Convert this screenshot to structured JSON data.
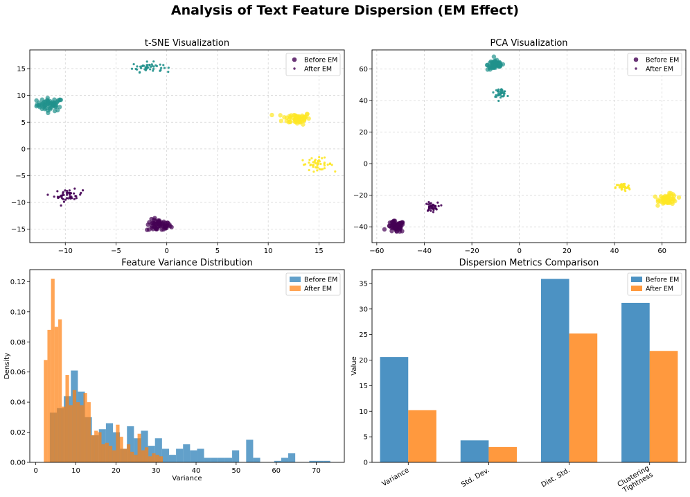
{
  "figure": {
    "title": "Analysis of Text Feature Dispersion (EM Effect)"
  },
  "chart_data": [
    {
      "id": "tsne",
      "type": "scatter",
      "title": "t-SNE Visualization",
      "xlabel": "",
      "ylabel": "",
      "xlim": [
        -13.5,
        17.5
      ],
      "ylim": [
        -17.5,
        18.5
      ],
      "xticks": [
        -10,
        -5,
        0,
        5,
        10,
        15
      ],
      "yticks": [
        -15,
        -10,
        -5,
        0,
        5,
        10,
        15
      ],
      "grid": true,
      "legend": "top-right",
      "series": [
        {
          "name": "Before EM",
          "marker": "large",
          "clusters": [
            {
              "cx": -11.5,
              "cy": 8.3,
              "sx": 0.65,
              "sy": 0.6,
              "n": 60,
              "color": "#21918c"
            },
            {
              "cx": -0.8,
              "cy": -14.3,
              "sx": 0.6,
              "sy": 0.55,
              "n": 60,
              "color": "#440154"
            },
            {
              "cx": 12.8,
              "cy": 5.7,
              "sx": 0.7,
              "sy": 0.55,
              "n": 60,
              "color": "#fde725"
            }
          ]
        },
        {
          "name": "After EM",
          "marker": "small",
          "clusters": [
            {
              "cx": -1.9,
              "cy": 15.3,
              "sx": 0.75,
              "sy": 0.45,
              "n": 45,
              "color": "#21918c"
            },
            {
              "cx": -9.7,
              "cy": -8.7,
              "sx": 0.7,
              "sy": 0.55,
              "n": 45,
              "color": "#440154"
            },
            {
              "cx": 14.8,
              "cy": -2.8,
              "sx": 0.8,
              "sy": 0.55,
              "n": 45,
              "color": "#fde725"
            }
          ]
        }
      ]
    },
    {
      "id": "pca",
      "type": "scatter",
      "title": "PCA Visualization",
      "xlabel": "",
      "ylabel": "",
      "xlim": [
        -62,
        70
      ],
      "ylim": [
        -50,
        72
      ],
      "xticks": [
        -60,
        -40,
        -20,
        0,
        20,
        40,
        60
      ],
      "yticks": [
        -40,
        -20,
        0,
        20,
        40,
        60
      ],
      "grid": true,
      "legend": "top-right",
      "series": [
        {
          "name": "Before EM",
          "marker": "large",
          "clusters": [
            {
              "cx": -10,
              "cy": 62.5,
              "sx": 1.7,
              "sy": 1.6,
              "n": 60,
              "color": "#21918c"
            },
            {
              "cx": -52,
              "cy": -40,
              "sx": 1.8,
              "sy": 1.8,
              "n": 60,
              "color": "#440154"
            },
            {
              "cx": 62.5,
              "cy": -22.5,
              "sx": 1.9,
              "sy": 1.6,
              "n": 60,
              "color": "#fde725"
            }
          ]
        },
        {
          "name": "After EM",
          "marker": "small",
          "clusters": [
            {
              "cx": -8,
              "cy": 45,
              "sx": 1.3,
              "sy": 1.3,
              "n": 40,
              "color": "#21918c"
            },
            {
              "cx": -37,
              "cy": -27.5,
              "sx": 1.3,
              "sy": 1.4,
              "n": 40,
              "color": "#440154"
            },
            {
              "cx": 43.5,
              "cy": -15,
              "sx": 1.5,
              "sy": 1.3,
              "n": 40,
              "color": "#fde725"
            }
          ]
        }
      ]
    },
    {
      "id": "hist",
      "type": "bar",
      "subtype": "histogram",
      "title": "Feature Variance Distribution",
      "xlabel": "Variance",
      "ylabel": "Density",
      "xlim": [
        -1.5,
        77
      ],
      "ylim": [
        0,
        0.128
      ],
      "xticks": [
        0,
        10,
        20,
        30,
        40,
        50,
        60,
        70
      ],
      "yticks": [
        0.0,
        0.02,
        0.04,
        0.06,
        0.08,
        0.1,
        0.12
      ],
      "grid": false,
      "legend": "top-right",
      "series": [
        {
          "name": "Before EM",
          "color": "#1f77b4",
          "opacity": 0.7,
          "bin_width": 1.75,
          "bins": [
            [
              3.5,
              5.25,
              0.033
            ],
            [
              5.25,
              7.0,
              0.036
            ],
            [
              7.0,
              8.75,
              0.044
            ],
            [
              8.75,
              10.5,
              0.061
            ],
            [
              10.5,
              12.25,
              0.047
            ],
            [
              12.25,
              14.0,
              0.03
            ],
            [
              14.0,
              15.75,
              0.018
            ],
            [
              15.75,
              17.5,
              0.022
            ],
            [
              17.5,
              19.25,
              0.026
            ],
            [
              19.25,
              21.0,
              0.02
            ],
            [
              21.0,
              22.75,
              0.009
            ],
            [
              22.75,
              24.5,
              0.024
            ],
            [
              24.5,
              26.25,
              0.016
            ],
            [
              26.25,
              28.0,
              0.021
            ],
            [
              28.0,
              29.75,
              0.011
            ],
            [
              29.75,
              31.5,
              0.016
            ],
            [
              31.5,
              33.25,
              0.009
            ],
            [
              33.25,
              35.0,
              0.005
            ],
            [
              35.0,
              36.75,
              0.009
            ],
            [
              36.75,
              38.5,
              0.012
            ],
            [
              38.5,
              40.25,
              0.008
            ],
            [
              40.25,
              42.0,
              0.009
            ],
            [
              42.0,
              43.75,
              0.003
            ],
            [
              43.75,
              45.5,
              0.003
            ],
            [
              45.5,
              47.25,
              0.003
            ],
            [
              47.25,
              49.0,
              0.003
            ],
            [
              49.0,
              50.75,
              0.008
            ],
            [
              50.75,
              52.5,
              0.0
            ],
            [
              52.5,
              54.25,
              0.015
            ],
            [
              54.25,
              56.0,
              0.003
            ],
            [
              59.5,
              61.25,
              0.001
            ],
            [
              61.25,
              63.0,
              0.003
            ],
            [
              63.0,
              64.75,
              0.006
            ],
            [
              68.25,
              70.0,
              0.001
            ],
            [
              70.0,
              71.75,
              0.001
            ],
            [
              71.75,
              73.5,
              0.001
            ]
          ]
        },
        {
          "name": "After EM",
          "color": "#ff7f0e",
          "opacity": 0.7,
          "bin_width": 0.9,
          "bins": [
            [
              2.0,
              2.9,
              0.068
            ],
            [
              2.9,
              3.8,
              0.088
            ],
            [
              3.8,
              4.7,
              0.122
            ],
            [
              4.7,
              5.6,
              0.09
            ],
            [
              5.6,
              6.5,
              0.095
            ],
            [
              6.5,
              7.4,
              0.037
            ],
            [
              7.4,
              8.3,
              0.058
            ],
            [
              8.3,
              9.2,
              0.038
            ],
            [
              9.2,
              10.1,
              0.048
            ],
            [
              10.1,
              11.0,
              0.04
            ],
            [
              11.0,
              11.9,
              0.038
            ],
            [
              11.9,
              12.8,
              0.046
            ],
            [
              12.8,
              13.7,
              0.04
            ],
            [
              13.7,
              14.6,
              0.018
            ],
            [
              14.6,
              15.5,
              0.021
            ],
            [
              15.5,
              16.4,
              0.02
            ],
            [
              16.4,
              17.3,
              0.012
            ],
            [
              17.3,
              18.2,
              0.013
            ],
            [
              18.2,
              19.1,
              0.011
            ],
            [
              19.1,
              20.0,
              0.008
            ],
            [
              20.0,
              20.9,
              0.025
            ],
            [
              20.9,
              21.8,
              0.017
            ],
            [
              21.8,
              22.7,
              0.009
            ],
            [
              22.7,
              23.6,
              0.012
            ],
            [
              23.6,
              24.5,
              0.007
            ],
            [
              24.5,
              25.4,
              0.005
            ],
            [
              25.4,
              26.3,
              0.019
            ],
            [
              26.3,
              27.2,
              0.008
            ],
            [
              27.2,
              28.1,
              0.01
            ],
            [
              28.1,
              29.0,
              0.004
            ],
            [
              29.0,
              29.9,
              0.006
            ],
            [
              29.9,
              30.8,
              0.005
            ],
            [
              30.8,
              31.7,
              0.004
            ]
          ]
        }
      ]
    },
    {
      "id": "metrics",
      "type": "bar",
      "title": "Dispersion Metrics Comparison",
      "xlabel": "",
      "ylabel": "Value",
      "ylim": [
        0,
        37.7
      ],
      "yticks": [
        0,
        5,
        10,
        15,
        20,
        25,
        30,
        35
      ],
      "grid": false,
      "legend": "top-right",
      "categories": [
        "Variance",
        "Std. Dev.",
        "Dist. Std.",
        "Clustering\nTightness"
      ],
      "series": [
        {
          "name": "Before EM",
          "color": "#1f77b4",
          "opacity": 0.8,
          "values": [
            20.6,
            4.3,
            35.9,
            31.2
          ]
        },
        {
          "name": "After EM",
          "color": "#ff7f0e",
          "opacity": 0.8,
          "values": [
            10.2,
            3.0,
            25.2,
            21.8
          ]
        }
      ]
    }
  ]
}
